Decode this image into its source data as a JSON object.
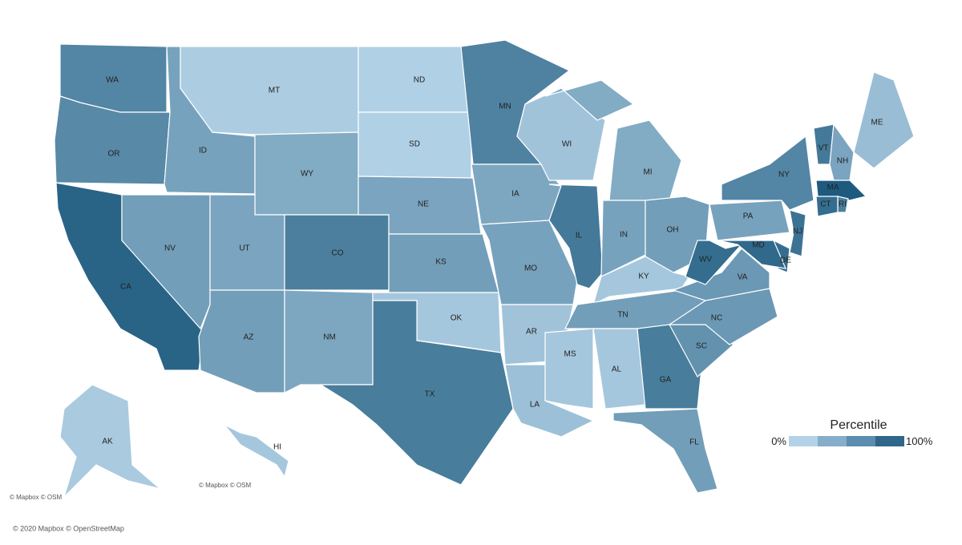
{
  "map": {
    "states": [
      {
        "abbr": "WA",
        "value": 65
      },
      {
        "abbr": "OR",
        "value": 62
      },
      {
        "abbr": "CA",
        "value": 92
      },
      {
        "abbr": "NV",
        "value": 45
      },
      {
        "abbr": "ID",
        "value": 42
      },
      {
        "abbr": "MT",
        "value": 8
      },
      {
        "abbr": "WY",
        "value": 35
      },
      {
        "abbr": "UT",
        "value": 40
      },
      {
        "abbr": "CO",
        "value": 70
      },
      {
        "abbr": "AZ",
        "value": 45
      },
      {
        "abbr": "NM",
        "value": 38
      },
      {
        "abbr": "ND",
        "value": 5
      },
      {
        "abbr": "SD",
        "value": 5
      },
      {
        "abbr": "NE",
        "value": 40
      },
      {
        "abbr": "KS",
        "value": 45
      },
      {
        "abbr": "OK",
        "value": 12
      },
      {
        "abbr": "TX",
        "value": 72
      },
      {
        "abbr": "MN",
        "value": 68
      },
      {
        "abbr": "IA",
        "value": 38
      },
      {
        "abbr": "MO",
        "value": 42
      },
      {
        "abbr": "AR",
        "value": 15
      },
      {
        "abbr": "LA",
        "value": 18
      },
      {
        "abbr": "WI",
        "value": 15
      },
      {
        "abbr": "IL",
        "value": 75
      },
      {
        "abbr": "MI",
        "value": 35
      },
      {
        "abbr": "IN",
        "value": 42
      },
      {
        "abbr": "OH",
        "value": 45
      },
      {
        "abbr": "KY",
        "value": 12
      },
      {
        "abbr": "TN",
        "value": 45
      },
      {
        "abbr": "MS",
        "value": 12
      },
      {
        "abbr": "AL",
        "value": 12
      },
      {
        "abbr": "GA",
        "value": 72
      },
      {
        "abbr": "FL",
        "value": 45
      },
      {
        "abbr": "SC",
        "value": 55
      },
      {
        "abbr": "NC",
        "value": 50
      },
      {
        "abbr": "VA",
        "value": 50
      },
      {
        "abbr": "WV",
        "value": 85
      },
      {
        "abbr": "PA",
        "value": 42
      },
      {
        "abbr": "NY",
        "value": 65
      },
      {
        "abbr": "VT",
        "value": 75
      },
      {
        "abbr": "NH",
        "value": 40
      },
      {
        "abbr": "ME",
        "value": 20
      },
      {
        "abbr": "MA",
        "value": 100
      },
      {
        "abbr": "CT",
        "value": 85
      },
      {
        "abbr": "RI",
        "value": 70
      },
      {
        "abbr": "NJ",
        "value": 80
      },
      {
        "abbr": "DE",
        "value": 85
      },
      {
        "abbr": "MD",
        "value": 88
      },
      {
        "abbr": "AK",
        "value": 10
      },
      {
        "abbr": "HI",
        "value": 12
      }
    ],
    "color_range": [
      "#b8d6ea",
      "#1d5a7e"
    ],
    "legend": {
      "title": "Percentile",
      "colors": [
        "#b3d2e8",
        "#86adc9",
        "#5b8daf",
        "#2f6689"
      ],
      "ticks": [
        {
          "value": 0,
          "label": "0%"
        },
        {
          "value": 100,
          "label": "100%"
        }
      ]
    },
    "attributions": [
      "© Mapbox © OSM",
      "© Mapbox © OSM",
      "© 2020 Mapbox © OpenStreetMap"
    ]
  }
}
